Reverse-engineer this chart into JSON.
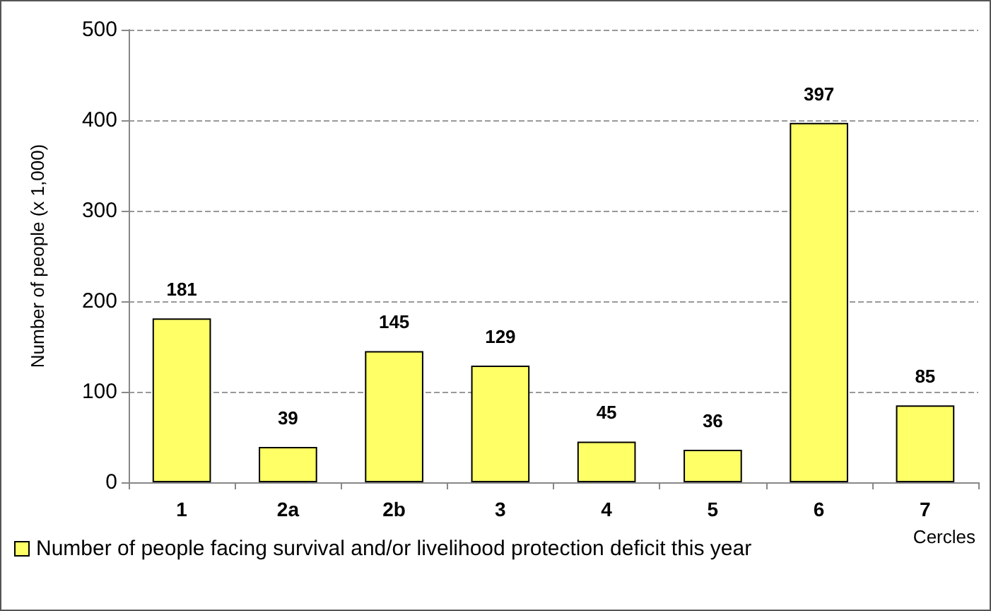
{
  "chart_data": {
    "type": "bar",
    "ylabel": "Number of people (x 1,000)",
    "xlabel": "Cercles",
    "categories": [
      "1",
      "2a",
      "2b",
      "3",
      "4",
      "5",
      "6",
      "7"
    ],
    "series": [
      {
        "name": "Number of people facing survival and/or livelihood protection deficit this year",
        "color": "#ffff66",
        "values": [
          181,
          39,
          145,
          129,
          45,
          36,
          397,
          85
        ]
      }
    ],
    "ylim": [
      0,
      500
    ],
    "yticks": [
      0,
      100,
      200,
      300,
      400,
      500
    ],
    "grid": "y",
    "legend": "bottom left",
    "data_labels": true
  }
}
